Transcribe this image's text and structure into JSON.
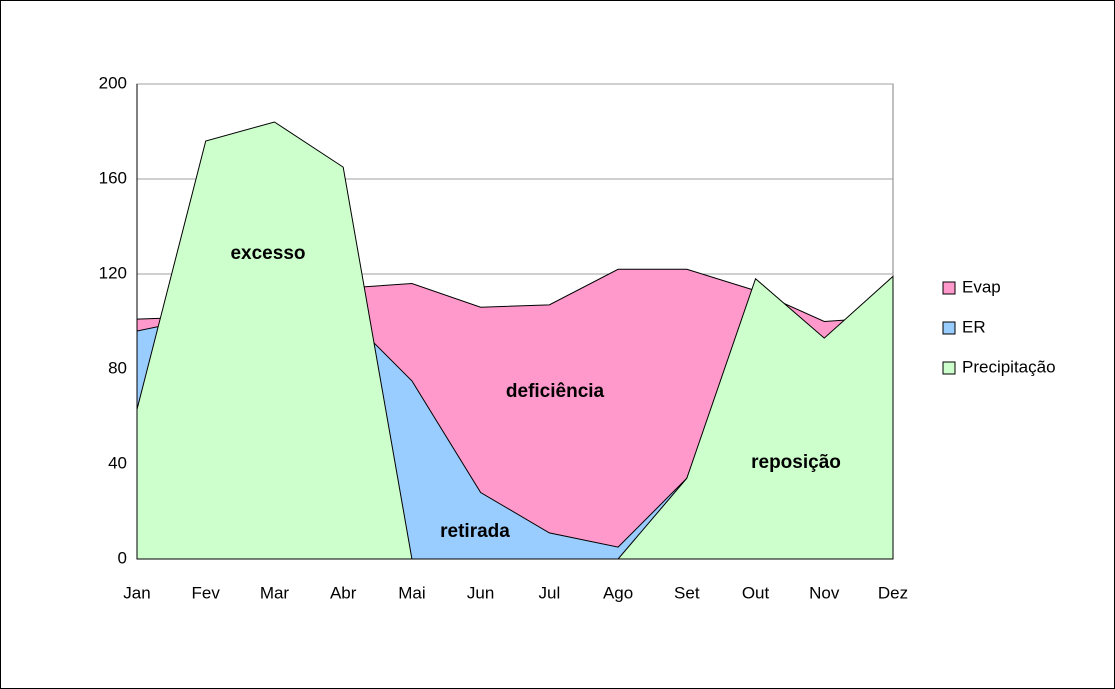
{
  "chart_data": {
    "type": "area",
    "categories": [
      "Jan",
      "Fev",
      "Mar",
      "Abr",
      "Mai",
      "Jun",
      "Jul",
      "Ago",
      "Set",
      "Out",
      "Nov",
      "Dez"
    ],
    "series": [
      {
        "name": "Evap",
        "color": "#ff99cc",
        "values": [
          101,
          102,
          110,
          114,
          116,
          106,
          107,
          122,
          122,
          113,
          100,
          102
        ]
      },
      {
        "name": "ER",
        "color": "#99ccff",
        "values": [
          96,
          102,
          110,
          104,
          75,
          28,
          11,
          5,
          34,
          113,
          93,
          102
        ]
      },
      {
        "name": "Precipitação",
        "color": "#ccffcc",
        "values": [
          63,
          176,
          184,
          165,
          0,
          0,
          0,
          0,
          34,
          118,
          93,
          119
        ]
      }
    ],
    "annotations": [
      "excesso",
      "deficiência",
      "retirada",
      "reposição"
    ],
    "ylim": [
      0,
      200
    ],
    "yticks": [
      0,
      40,
      80,
      120,
      160,
      200
    ],
    "grid": true,
    "legend": "right"
  }
}
